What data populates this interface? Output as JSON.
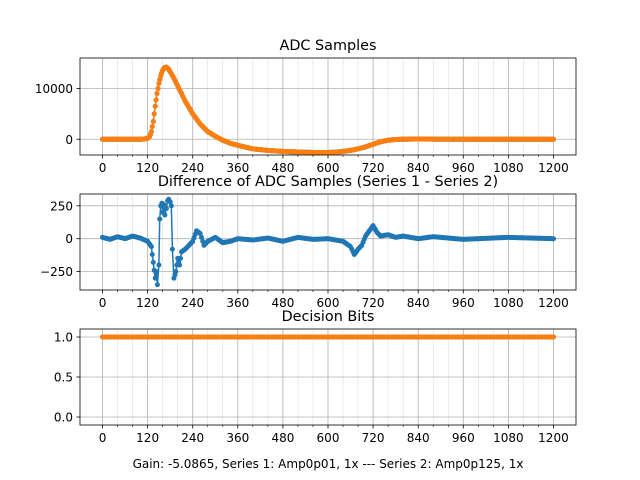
{
  "colors": {
    "series1": "#1f77b4",
    "series2": "#ff7f0e",
    "grid": "#b0b0b0"
  },
  "footer_text": "Gain: -5.0865, Series 1: Amp0p01, 1x --- Series 2: Amp0p125, 1x",
  "chart_data": [
    {
      "type": "line",
      "title": "ADC Samples",
      "xlim": [
        -60,
        1260
      ],
      "ylim": [
        -3100,
        16000
      ],
      "xticks": [
        0,
        120,
        240,
        360,
        480,
        600,
        720,
        840,
        960,
        1080,
        1200
      ],
      "yticks": [
        0,
        10000
      ],
      "yticklabels": [
        "0",
        "10000"
      ],
      "grid": true,
      "series": [
        {
          "name": "Series 1",
          "color": "#1f77b4",
          "x": [
            0,
            100,
            118,
            125,
            130,
            135,
            140,
            145,
            150,
            155,
            160,
            165,
            170,
            175,
            180,
            190,
            200,
            210,
            220,
            240,
            260,
            280,
            300,
            320,
            340,
            360,
            400,
            440,
            480,
            520,
            560,
            600,
            620,
            640,
            660,
            680,
            700,
            720,
            740,
            760,
            780,
            800,
            840,
            880,
            960,
            1080,
            1200
          ],
          "y": [
            0,
            0,
            100,
            500,
            1500,
            3500,
            6500,
            9000,
            11000,
            12500,
            13600,
            14100,
            14200,
            13900,
            13300,
            12000,
            10500,
            9000,
            7500,
            5000,
            3000,
            1500,
            600,
            -200,
            -800,
            -1200,
            -1900,
            -2200,
            -2400,
            -2500,
            -2600,
            -2600,
            -2550,
            -2400,
            -2200,
            -1900,
            -1500,
            -1000,
            -500,
            -200,
            -50,
            0,
            50,
            20,
            0,
            0,
            0
          ]
        },
        {
          "name": "Series 2",
          "color": "#ff7f0e",
          "x": [
            0,
            100,
            118,
            125,
            130,
            135,
            140,
            145,
            150,
            155,
            160,
            165,
            170,
            175,
            180,
            190,
            200,
            210,
            220,
            240,
            260,
            280,
            300,
            320,
            340,
            360,
            400,
            440,
            480,
            520,
            560,
            600,
            620,
            640,
            660,
            680,
            700,
            720,
            740,
            760,
            780,
            800,
            840,
            880,
            960,
            1080,
            1200
          ],
          "y": [
            0,
            0,
            100,
            500,
            1500,
            3500,
            6500,
            9000,
            11000,
            12500,
            13600,
            14100,
            14200,
            13900,
            13300,
            12000,
            10500,
            9000,
            7500,
            5000,
            3000,
            1500,
            600,
            -200,
            -800,
            -1200,
            -1900,
            -2200,
            -2400,
            -2500,
            -2600,
            -2600,
            -2550,
            -2400,
            -2200,
            -1900,
            -1500,
            -1000,
            -500,
            -200,
            -50,
            0,
            50,
            20,
            0,
            0,
            0
          ]
        }
      ]
    },
    {
      "type": "line",
      "title": "Difference of ADC Samples (Series 1 - Series 2)",
      "xlim": [
        -60,
        1260
      ],
      "ylim": [
        -390,
        340
      ],
      "xticks": [
        0,
        120,
        240,
        360,
        480,
        600,
        720,
        840,
        960,
        1080,
        1200
      ],
      "yticks": [
        -250,
        0,
        250
      ],
      "yticklabels": [
        "−250",
        "0",
        "250"
      ],
      "grid": true,
      "series": [
        {
          "name": "Series 1 - Series 2",
          "color": "#1f77b4",
          "x": [
            0,
            20,
            40,
            60,
            80,
            100,
            120,
            130,
            135,
            140,
            143,
            146,
            150,
            152,
            155,
            158,
            160,
            163,
            166,
            170,
            173,
            176,
            180,
            183,
            186,
            190,
            195,
            200,
            205,
            210,
            220,
            230,
            240,
            250,
            260,
            270,
            280,
            300,
            320,
            340,
            360,
            400,
            440,
            480,
            520,
            560,
            600,
            640,
            660,
            670,
            680,
            690,
            700,
            710,
            720,
            730,
            740,
            760,
            780,
            800,
            840,
            880,
            960,
            1080,
            1200
          ],
          "y": [
            10,
            -5,
            15,
            0,
            20,
            5,
            -20,
            -60,
            -180,
            -300,
            -250,
            -350,
            -200,
            150,
            250,
            270,
            200,
            260,
            180,
            230,
            290,
            300,
            280,
            250,
            -80,
            -300,
            -250,
            -150,
            -200,
            -100,
            -80,
            -50,
            -20,
            60,
            40,
            -50,
            -20,
            10,
            -30,
            -20,
            0,
            -10,
            5,
            -20,
            10,
            -5,
            0,
            -20,
            -60,
            -120,
            -80,
            -50,
            20,
            60,
            100,
            50,
            20,
            30,
            10,
            20,
            0,
            15,
            -5,
            10,
            0
          ]
        }
      ]
    },
    {
      "type": "line",
      "title": "Decision Bits",
      "xlim": [
        -60,
        1260
      ],
      "ylim": [
        -0.1,
        1.1
      ],
      "xticks": [
        0,
        120,
        240,
        360,
        480,
        600,
        720,
        840,
        960,
        1080,
        1200
      ],
      "yticks": [
        0.0,
        0.5,
        1.0
      ],
      "yticklabels": [
        "0.0",
        "0.5",
        "1.0"
      ],
      "grid": true,
      "series": [
        {
          "name": "Series 1",
          "color": "#1f77b4",
          "x": [
            0,
            1200
          ],
          "y": [
            1,
            1
          ]
        },
        {
          "name": "Series 2",
          "color": "#ff7f0e",
          "x": [
            0,
            1200
          ],
          "y": [
            1,
            1
          ]
        }
      ]
    }
  ]
}
